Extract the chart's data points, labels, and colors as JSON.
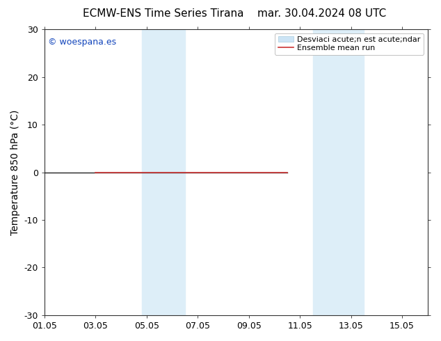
{
  "title_left": "ECMW-ENS Time Series Tirana",
  "title_right": "mar. 30.04.2024 08 UTC",
  "ylabel": "Temperature 850 hPa (°C)",
  "xlim": [
    0,
    15
  ],
  "ylim": [
    -30,
    30
  ],
  "yticks": [
    -30,
    -20,
    -10,
    0,
    10,
    20,
    30
  ],
  "xtick_labels": [
    "01.05",
    "03.05",
    "05.05",
    "07.05",
    "09.05",
    "11.05",
    "13.05",
    "15.05"
  ],
  "xtick_positions": [
    0,
    2,
    4,
    6,
    8,
    10,
    12,
    14
  ],
  "background_color": "#ffffff",
  "plot_background": "#ffffff",
  "shaded_bands": [
    {
      "x_start": 3.8,
      "x_end": 5.5,
      "color": "#ddeef8"
    },
    {
      "x_start": 10.5,
      "x_end": 12.5,
      "color": "#ddeef8"
    }
  ],
  "mean_line_y": 0,
  "mean_line_color": "#cc3333",
  "mean_line_xstart": 2.0,
  "mean_line_xend": 9.5,
  "dark_line_y": 0,
  "dark_line_color": "#222222",
  "dark_line_xstart": 0.0,
  "dark_line_xend": 9.5,
  "watermark_text": "© woespana.es",
  "watermark_color": "#1144bb",
  "legend_std_label": "Desviaci acute;n est acute;ndar",
  "legend_mean_label": "Ensemble mean run",
  "legend_std_facecolor": "#cce4f5",
  "legend_std_edgecolor": "#aaccdd",
  "legend_mean_color": "#cc3333",
  "title_fontsize": 11,
  "tick_fontsize": 9,
  "ylabel_fontsize": 10,
  "watermark_fontsize": 9,
  "legend_fontsize": 8
}
